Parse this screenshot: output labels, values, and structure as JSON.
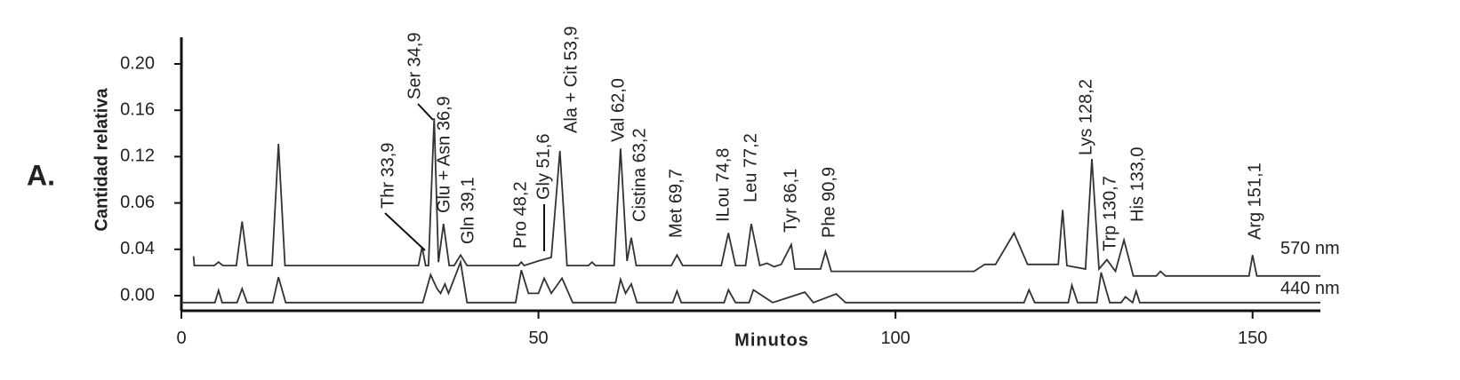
{
  "panel_label": "A.",
  "chart_data": {
    "type": "line",
    "y_label": "Cantidad relativa",
    "x_label": "Minutos",
    "xlim": [
      0,
      159.5
    ],
    "xticks": [
      0,
      50,
      100,
      150
    ],
    "ylim": [
      -0.013,
      0.223
    ],
    "yticks": [
      {
        "value": 0,
        "label": "0.00"
      },
      {
        "value": 0.04,
        "label": "0.04"
      },
      {
        "value": 0.06,
        "label": "0.06"
      },
      {
        "value": 0.12,
        "label": "0.12"
      },
      {
        "value": 0.16,
        "label": "0.16"
      },
      {
        "value": 0.2,
        "label": "0.20"
      }
    ],
    "series": [
      {
        "name": "570 nm",
        "color": "#333333",
        "x": [
          1.7,
          1.8,
          4.6,
          5.2,
          5.8,
          7.7,
          8.5,
          9.3,
          12.7,
          13.6,
          14.5,
          33.2,
          33.7,
          34.2,
          34.6,
          35.4,
          36.0,
          36.7,
          37.5,
          38.2,
          39.1,
          40.0,
          47.2,
          47.6,
          48.0,
          50.0,
          51.8,
          53.0,
          54.0,
          57.0,
          57.5,
          58.0,
          60.6,
          61.5,
          62.4,
          63.0,
          63.7,
          68.6,
          69.4,
          70.2,
          75.6,
          76.6,
          77.6,
          79.0,
          79.8,
          81.0,
          82.0,
          83.0,
          84.0,
          85.4,
          85.9,
          89.5,
          90.2,
          91.0,
          111.0,
          112.5,
          114.0,
          116.6,
          118.5,
          122.8,
          123.4,
          124.0,
          126.6,
          127.5,
          128.5,
          129.6,
          130.8,
          132.0,
          133.3,
          136.5,
          137.1,
          137.8,
          149.5,
          150.0,
          150.6,
          159.5
        ],
        "values": [
          0.034,
          0.026,
          0.026,
          0.029,
          0.026,
          0.026,
          0.052,
          0.026,
          0.026,
          0.131,
          0.026,
          0.026,
          0.041,
          0.026,
          0.026,
          0.153,
          0.029,
          0.051,
          0.026,
          0.026,
          0.035,
          0.026,
          0.026,
          0.029,
          0.026,
          0.03,
          0.033,
          0.125,
          0.026,
          0.026,
          0.029,
          0.026,
          0.026,
          0.127,
          0.03,
          0.045,
          0.026,
          0.026,
          0.035,
          0.026,
          0.026,
          0.047,
          0.026,
          0.026,
          0.051,
          0.026,
          0.028,
          0.025,
          0.027,
          0.042,
          0.023,
          0.023,
          0.038,
          0.021,
          0.021,
          0.027,
          0.027,
          0.047,
          0.027,
          0.027,
          0.057,
          0.026,
          0.023,
          0.117,
          0.023,
          0.031,
          0.021,
          0.044,
          0.017,
          0.017,
          0.021,
          0.017,
          0.017,
          0.035,
          0.017,
          0.017
        ]
      },
      {
        "name": "440 nm",
        "color": "#333333",
        "x": [
          0,
          4.7,
          5.2,
          5.7,
          7.8,
          8.5,
          9.2,
          12.8,
          13.6,
          14.6,
          33.8,
          34.9,
          35.8,
          36.3,
          36.9,
          37.4,
          39.1,
          40.0,
          46.8,
          47.6,
          48.6,
          50.0,
          50.8,
          51.8,
          53.3,
          54.8,
          60.8,
          61.5,
          62.2,
          63.0,
          63.8,
          68.8,
          69.4,
          70.0,
          76.0,
          76.6,
          77.6,
          79.5,
          80.1,
          82.8,
          87.3,
          88.5,
          91.7,
          93.0,
          118.0,
          118.7,
          119.5,
          124.2,
          124.7,
          125.5,
          128.2,
          128.8,
          130.0,
          131.6,
          132.2,
          133.2,
          133.7,
          134.2,
          159.5
        ],
        "values": [
          -0.006,
          -0.006,
          0.0045,
          -0.006,
          -0.006,
          0.006,
          -0.006,
          -0.006,
          0.016,
          -0.006,
          -0.006,
          0.018,
          0.006,
          0.002,
          0.01,
          0.002,
          0.029,
          -0.006,
          -0.006,
          0.022,
          0.002,
          0.002,
          0.015,
          0.002,
          0.015,
          -0.006,
          -0.006,
          0.014,
          0.002,
          0.01,
          -0.006,
          -0.006,
          0.004,
          -0.006,
          -0.006,
          0.005,
          -0.006,
          -0.006,
          0.005,
          -0.006,
          0.003,
          -0.006,
          0.0015,
          -0.006,
          -0.006,
          0.005,
          -0.006,
          -0.006,
          0.009,
          -0.006,
          -0.006,
          0.02,
          -0.006,
          -0.006,
          -0.001,
          -0.006,
          0.004,
          -0.006,
          -0.006
        ]
      }
    ],
    "annotations": [
      "Thr 33,9",
      "Ser 34,9",
      "Glu + Asn 36,9",
      "Gln 39,1",
      "Pro 48,2",
      "Gly 51,6",
      "Ala + Cit 53,9",
      "Val 62,0",
      "Cistina 63,2",
      "Met 69,7",
      "ILou 74,8",
      "Leu 77,2",
      "Tyr 86,1",
      "Phe 90,9",
      "Lys 128,2",
      "Trp 130,7",
      "His 133,0",
      "Arg 151,1"
    ]
  }
}
